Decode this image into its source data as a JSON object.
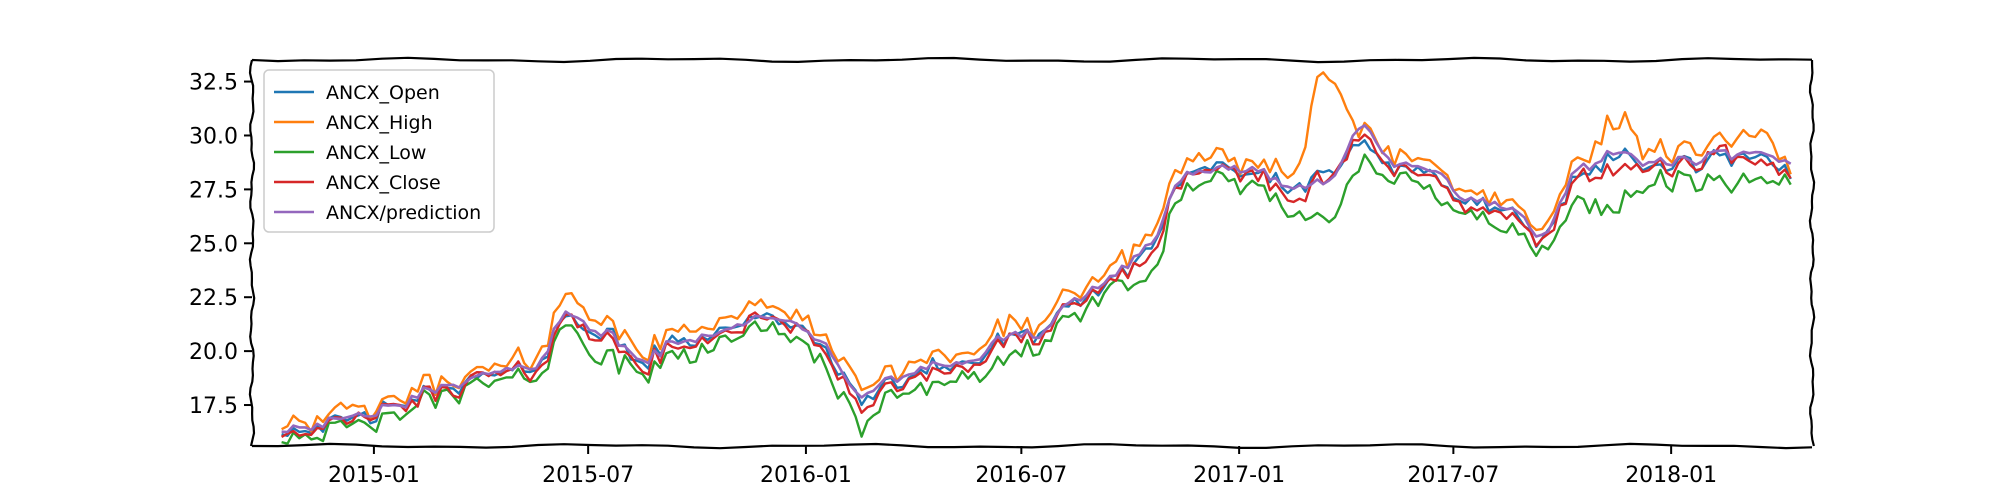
{
  "chart_data": {
    "type": "line",
    "title": "",
    "xlabel": "",
    "ylabel": "",
    "grid": false,
    "legend_position": "top-left",
    "x_start": "2014-09",
    "x_end": "2018-04",
    "xlim": [
      "2014-09-20",
      "2018-04-30"
    ],
    "ylim": [
      15.6,
      33.5
    ],
    "x_ticks": [
      {
        "label": "2015-01",
        "date": "2015-01-01"
      },
      {
        "label": "2015-07",
        "date": "2015-07-01"
      },
      {
        "label": "2016-01",
        "date": "2016-01-01"
      },
      {
        "label": "2016-07",
        "date": "2016-07-01"
      },
      {
        "label": "2017-01",
        "date": "2017-01-01"
      },
      {
        "label": "2017-07",
        "date": "2017-07-01"
      },
      {
        "label": "2018-01",
        "date": "2018-01-01"
      }
    ],
    "y_ticks": [
      {
        "label": "17.5",
        "value": 17.5
      },
      {
        "label": "20.0",
        "value": 20.0
      },
      {
        "label": "22.5",
        "value": 22.5
      },
      {
        "label": "25.0",
        "value": 25.0
      },
      {
        "label": "27.5",
        "value": 27.5
      },
      {
        "label": "30.0",
        "value": 30.0
      },
      {
        "label": "32.5",
        "value": 32.5
      }
    ],
    "x_months": [
      "2014-10",
      "2014-11",
      "2014-12",
      "2015-01",
      "2015-02",
      "2015-03",
      "2015-04",
      "2015-05",
      "2015-06",
      "2015-07",
      "2015-08",
      "2015-09",
      "2015-10",
      "2015-11",
      "2015-12",
      "2016-01",
      "2016-02",
      "2016-03",
      "2016-04",
      "2016-05",
      "2016-06",
      "2016-07",
      "2016-08",
      "2016-09",
      "2016-10",
      "2016-11",
      "2016-12",
      "2017-01",
      "2017-02",
      "2017-03",
      "2017-04",
      "2017-05",
      "2017-06",
      "2017-07",
      "2017-08",
      "2017-09",
      "2017-10",
      "2017-11",
      "2017-12",
      "2018-01",
      "2018-02",
      "2018-03",
      "2018-04"
    ],
    "series": [
      {
        "name": "ANCX_Open",
        "color": "#1f77b4",
        "values": [
          16.4,
          16.6,
          16.9,
          17.3,
          18.0,
          18.5,
          18.9,
          19.3,
          21.6,
          20.7,
          19.5,
          20.4,
          20.8,
          21.4,
          21.5,
          20.2,
          17.8,
          18.5,
          19.4,
          19.3,
          20.5,
          20.8,
          22.1,
          23.3,
          24.5,
          28.0,
          28.3,
          28.3,
          27.5,
          28.5,
          29.5,
          28.4,
          28.2,
          26.8,
          26.5,
          25.0,
          28.2,
          29.0,
          28.5,
          28.6,
          29.0,
          28.8,
          28.2
        ]
      },
      {
        "name": "ANCX_High",
        "color": "#ff7f0e",
        "values": [
          16.7,
          16.9,
          17.2,
          17.6,
          18.4,
          18.9,
          19.2,
          19.7,
          22.6,
          21.2,
          20.0,
          20.9,
          21.4,
          22.0,
          22.0,
          20.7,
          18.4,
          19.0,
          20.0,
          19.8,
          21.1,
          21.2,
          22.6,
          23.8,
          25.2,
          28.6,
          28.8,
          28.8,
          28.2,
          33.2,
          30.1,
          29.0,
          28.8,
          27.3,
          27.0,
          25.5,
          28.8,
          30.7,
          29.2,
          29.3,
          29.6,
          29.9,
          28.4
        ]
      },
      {
        "name": "ANCX_Low",
        "color": "#2ca02c",
        "values": [
          16.1,
          16.2,
          16.5,
          16.8,
          17.7,
          18.2,
          18.6,
          18.9,
          21.1,
          19.6,
          19.0,
          19.7,
          20.3,
          20.8,
          21.0,
          19.5,
          16.5,
          17.9,
          18.5,
          18.7,
          19.4,
          20.3,
          21.6,
          22.9,
          23.2,
          27.4,
          27.7,
          27.8,
          26.3,
          26.4,
          28.5,
          27.8,
          27.4,
          26.2,
          25.6,
          24.4,
          27.1,
          26.6,
          27.8,
          27.9,
          27.6,
          27.7,
          27.9
        ]
      },
      {
        "name": "ANCX_Close",
        "color": "#d62728",
        "values": [
          16.3,
          16.5,
          16.8,
          17.2,
          17.9,
          18.4,
          18.8,
          19.1,
          21.6,
          20.5,
          19.3,
          20.2,
          20.7,
          21.3,
          21.4,
          20.0,
          17.4,
          18.3,
          19.1,
          19.1,
          20.3,
          20.7,
          22.0,
          23.2,
          24.2,
          27.9,
          28.2,
          28.2,
          27.0,
          28.3,
          29.8,
          28.2,
          28.1,
          26.6,
          26.3,
          24.9,
          28.1,
          28.5,
          28.4,
          28.5,
          29.1,
          28.6,
          28.1
        ]
      },
      {
        "name": "ANCX/prediction",
        "color": "#9467bd",
        "values": [
          16.4,
          16.6,
          16.9,
          17.3,
          18.1,
          18.6,
          19.0,
          19.3,
          21.8,
          20.8,
          19.6,
          20.4,
          20.9,
          21.4,
          21.5,
          20.4,
          17.9,
          18.7,
          19.4,
          19.4,
          20.6,
          20.8,
          22.3,
          23.4,
          24.8,
          28.1,
          28.4,
          28.4,
          27.6,
          28.0,
          30.3,
          28.6,
          28.4,
          27.0,
          26.7,
          25.3,
          28.5,
          29.2,
          28.7,
          28.8,
          29.1,
          29.1,
          28.7
        ]
      }
    ]
  }
}
